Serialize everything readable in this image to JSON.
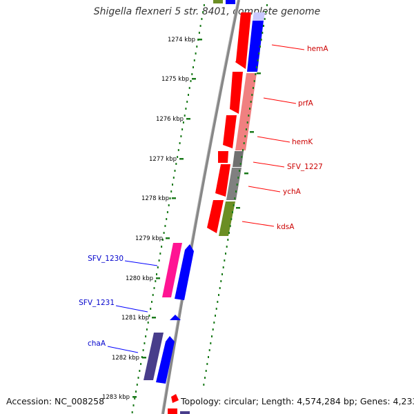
{
  "title": "Shigella flexneri 5 str. 8401, complete genome",
  "footer": {
    "accession": "Accession: NC_008258",
    "summary": "Topology: circular; Length: 4,574,284 bp; Genes: 4,233"
  },
  "kbp_ticks": [
    "1274 kbp",
    "1275 kbp",
    "1276 kbp",
    "1277 kbp",
    "1278 kbp",
    "1279 kbp",
    "1280 kbp",
    "1281 kbp",
    "1282 kbp",
    "1283 kbp"
  ],
  "genes_right": [
    "hemA",
    "prfA",
    "hemK",
    "SFV_1227",
    "ychA",
    "kdsA"
  ],
  "genes_left": [
    "SFV_1230",
    "SFV_1231",
    "chaA"
  ],
  "colors": {
    "red": "#ff0000",
    "blue": "#0000ff",
    "pink": "#ff8a8a",
    "olive": "#6b8e23",
    "gray": "#707070",
    "magenta": "#ff1493",
    "slate": "#483d8b",
    "tick_green": "#1a7a1a",
    "label_red": "#cc0000",
    "label_blue": "#0000cc"
  }
}
